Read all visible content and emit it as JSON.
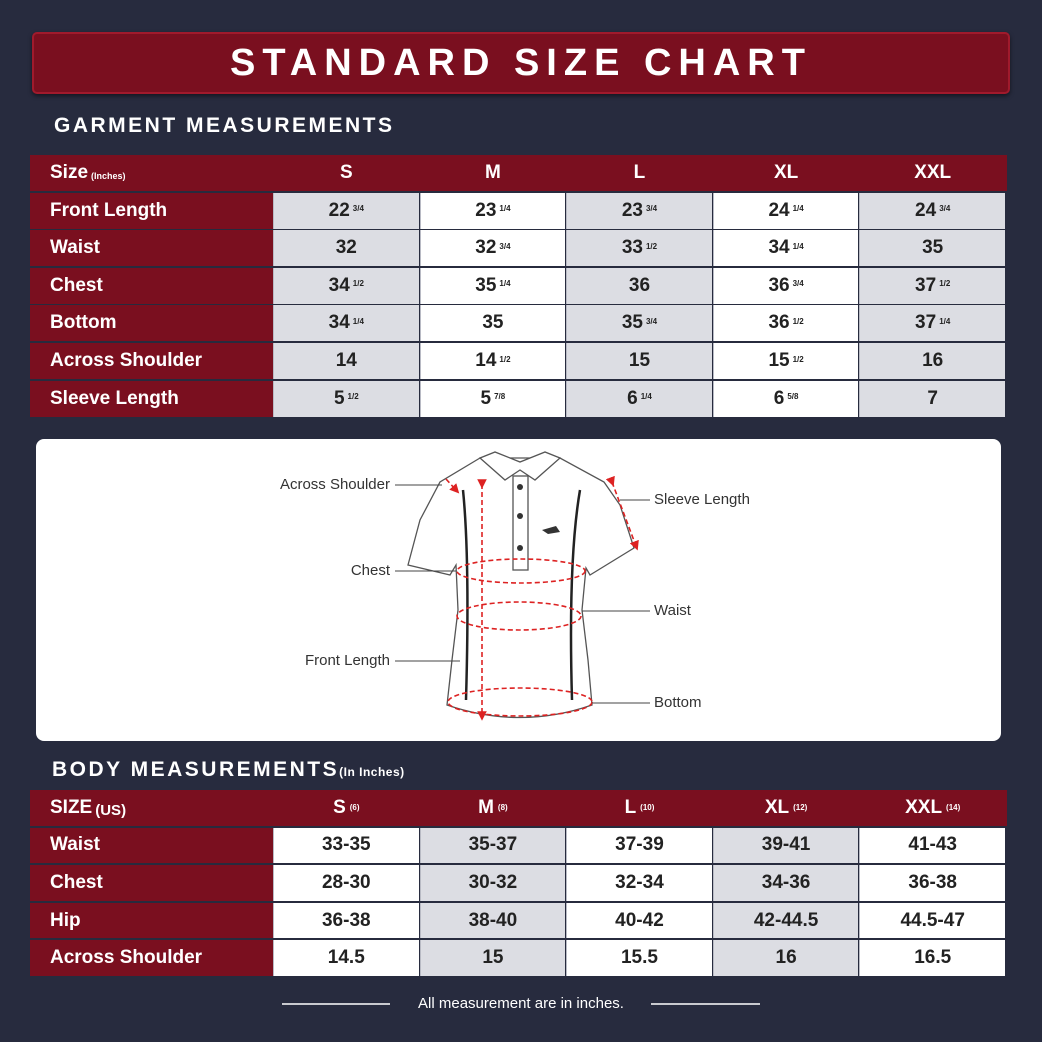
{
  "title": "STANDARD SIZE CHART",
  "garment": {
    "heading": "GARMENT MEASUREMENTS",
    "size_label": "Size",
    "size_unit": "(Inches)",
    "sizes": [
      "S",
      "M",
      "L",
      "XL",
      "XXL"
    ],
    "rows": [
      {
        "label": "Front Length",
        "cells": [
          [
            "22",
            "3/4"
          ],
          [
            "23",
            "1/4"
          ],
          [
            "23",
            "3/4"
          ],
          [
            "24",
            "1/4"
          ],
          [
            "24",
            "3/4"
          ]
        ]
      },
      {
        "label": "Waist",
        "cells": [
          [
            "32"
          ],
          [
            "32",
            "3/4"
          ],
          [
            "33",
            "1/2"
          ],
          [
            "34",
            "1/4"
          ],
          [
            "35"
          ]
        ]
      },
      {
        "label": "Chest",
        "cells": [
          [
            "34",
            "1/2"
          ],
          [
            "35",
            "1/4"
          ],
          [
            "36"
          ],
          [
            "36",
            "3/4"
          ],
          [
            "37",
            "1/2"
          ]
        ]
      },
      {
        "label": "Bottom",
        "cells": [
          [
            "34",
            "1/4"
          ],
          [
            "35"
          ],
          [
            "35",
            "3/4"
          ],
          [
            "36",
            "1/2"
          ],
          [
            "37",
            "1/4"
          ]
        ]
      },
      {
        "label": "Across Shoulder",
        "cells": [
          [
            "14"
          ],
          [
            "14",
            "1/2"
          ],
          [
            "15"
          ],
          [
            "15",
            "1/2"
          ],
          [
            "16"
          ]
        ]
      },
      {
        "label": "Sleeve Length",
        "cells": [
          [
            "5",
            "1/2"
          ],
          [
            "5",
            "7/8"
          ],
          [
            "6",
            "1/4"
          ],
          [
            "6",
            "5/8"
          ],
          [
            "7"
          ]
        ]
      }
    ]
  },
  "diagram": {
    "across_shoulder": "Across Shoulder",
    "chest": "Chest",
    "front_length": "Front Length",
    "sleeve_length": "Sleeve Length",
    "waist": "Waist",
    "bottom": "Bottom"
  },
  "body": {
    "heading": "BODY MEASUREMENTS",
    "unit": "(In Inches)",
    "size_label": "SIZE",
    "size_unit": "(US)",
    "sizes": [
      [
        "S",
        "(6)"
      ],
      [
        "M",
        "(8)"
      ],
      [
        "L",
        "(10)"
      ],
      [
        "XL",
        "(12)"
      ],
      [
        "XXL",
        "(14)"
      ]
    ],
    "rows": [
      {
        "label": "Waist",
        "cells": [
          "33-35",
          "35-37",
          "37-39",
          "39-41",
          "41-43"
        ]
      },
      {
        "label": "Chest",
        "cells": [
          "28-30",
          "30-32",
          "32-34",
          "34-36",
          "36-38"
        ]
      },
      {
        "label": "Hip",
        "cells": [
          "36-38",
          "38-40",
          "40-42",
          "42-44.5",
          "44.5-47"
        ]
      },
      {
        "label": "Across Shoulder",
        "cells": [
          "14.5",
          "15",
          "15.5",
          "16",
          "16.5"
        ]
      }
    ]
  },
  "footer": "All measurement are in inches."
}
